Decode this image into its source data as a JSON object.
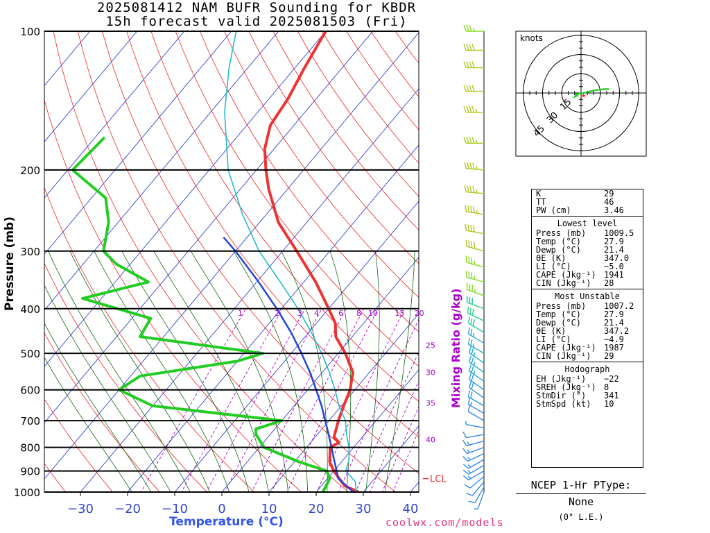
{
  "title": {
    "line1": "2025081412 NAM BUFR Sounding for KBDR",
    "line2": "15h forecast valid 2025081503 (Fri)"
  },
  "credit": "coolwx.com/models",
  "colors": {
    "temperature": "#ee3333",
    "dewpoint": "#22cc22",
    "parcel": "#2244dd",
    "virtual_temp": "#22bbcc",
    "isotherm": "#3344cc",
    "dry_adiabat": "#ee2222",
    "moist_adiabat": "#116611",
    "mixing_ratio": "#aa00cc"
  },
  "chart_data": [
    {
      "type": "line",
      "name": "skew-t",
      "xlabel": "Temperature (°C)",
      "ylabel": "Pressure (mb)",
      "pressure_range_mb": [
        1000,
        100
      ],
      "pressure_scale": "log",
      "temperature_ticks_c": [
        -30,
        -20,
        -10,
        0,
        10,
        20,
        30,
        40
      ],
      "pressure_ticks_mb": [
        100,
        200,
        300,
        400,
        500,
        600,
        700,
        800,
        900,
        1000
      ],
      "mixing_ratio_label": "Mixing Ratio (g/kg)",
      "mixing_ratio_ticks": [
        "1",
        "2",
        "3",
        "4",
        "6",
        "8",
        "10",
        "15",
        "20"
      ],
      "mixing_ratio_side_ticks": [
        "25",
        "30",
        "35",
        "40"
      ],
      "lcl_label": "LCL",
      "lcl_pressure_mb": 935,
      "series": [
        {
          "key": "temperature",
          "points": [
            [
              1000,
              29
            ],
            [
              970,
              25
            ],
            [
              935,
              22.5
            ],
            [
              900,
              20
            ],
            [
              860,
              17.5
            ],
            [
              800,
              15
            ],
            [
              780,
              16
            ],
            [
              760,
              14
            ],
            [
              700,
              12
            ],
            [
              650,
              10.5
            ],
            [
              600,
              9
            ],
            [
              550,
              6.5
            ],
            [
              500,
              1.5
            ],
            [
              460,
              -3.5
            ],
            [
              430,
              -6
            ],
            [
              400,
              -10
            ],
            [
              350,
              -17.5
            ],
            [
              300,
              -27
            ],
            [
              260,
              -36
            ],
            [
              220,
              -44
            ],
            [
              200,
              -48
            ],
            [
              180,
              -52
            ],
            [
              160,
              -55
            ],
            [
              140,
              -56
            ],
            [
              120,
              -58
            ],
            [
              100,
              -60
            ]
          ]
        },
        {
          "key": "dewpoint",
          "points": [
            [
              1000,
              21.4
            ],
            [
              970,
              21
            ],
            [
              935,
              20.5
            ],
            [
              900,
              18.5
            ],
            [
              860,
              11
            ],
            [
              800,
              1
            ],
            [
              750,
              -3
            ],
            [
              730,
              -4
            ],
            [
              700,
              0
            ],
            [
              650,
              -30
            ],
            [
              600,
              -40
            ],
            [
              560,
              -38
            ],
            [
              520,
              -20
            ],
            [
              500,
              -16
            ],
            [
              460,
              -45
            ],
            [
              420,
              -46
            ],
            [
              380,
              -64
            ],
            [
              350,
              -53
            ],
            [
              320,
              -63
            ],
            [
              300,
              -68
            ],
            [
              260,
              -72
            ],
            [
              230,
              -77
            ],
            [
              200,
              -89
            ],
            [
              170,
              -88
            ]
          ]
        },
        {
          "key": "parcel",
          "points": [
            [
              1000,
              27.9
            ],
            [
              935,
              22.3
            ],
            [
              900,
              20.6
            ],
            [
              850,
              18
            ],
            [
              800,
              15.3
            ],
            [
              750,
              12.4
            ],
            [
              700,
              9.2
            ],
            [
              650,
              5.8
            ],
            [
              600,
              1.8
            ],
            [
              550,
              -2.6
            ],
            [
              500,
              -7.8
            ],
            [
              450,
              -13.8
            ],
            [
              400,
              -21
            ],
            [
              350,
              -29.6
            ],
            [
              300,
              -40
            ],
            [
              280,
              -45
            ]
          ]
        },
        {
          "key": "virtual_temp",
          "points": [
            [
              1000,
              28.5
            ],
            [
              950,
              26.5
            ],
            [
              900,
              22.5
            ],
            [
              850,
              21.2
            ],
            [
              800,
              19
            ],
            [
              750,
              16.2
            ],
            [
              700,
              13.5
            ],
            [
              650,
              9.5
            ],
            [
              600,
              5.8
            ],
            [
              550,
              1.5
            ],
            [
              500,
              -3.5
            ],
            [
              450,
              -9.5
            ],
            [
              400,
              -16.5
            ],
            [
              350,
              -25
            ],
            [
              300,
              -35
            ],
            [
              250,
              -45
            ],
            [
              200,
              -56
            ],
            [
              150,
              -67
            ],
            [
              120,
              -74
            ],
            [
              100,
              -79
            ]
          ]
        }
      ]
    },
    {
      "type": "scatter",
      "name": "hodograph",
      "unit_label": "knots",
      "ring_labels": [
        "15",
        "30",
        "45"
      ],
      "rings_kt": [
        15,
        30,
        45
      ],
      "trace_uv_kt": [
        [
          -2,
          -2
        ],
        [
          -3,
          -2
        ],
        [
          -5,
          -3
        ],
        [
          -4,
          -1
        ],
        [
          2,
          0
        ],
        [
          10,
          2
        ],
        [
          18,
          3
        ],
        [
          22,
          3
        ]
      ],
      "storm_motion_uv_kt": [
        2,
        -1
      ]
    }
  ],
  "wind_barbs": [
    {
      "p": 1000,
      "dir": 200,
      "spd": 5
    },
    {
      "p": 975,
      "dir": 210,
      "spd": 10
    },
    {
      "p": 950,
      "dir": 220,
      "spd": 10
    },
    {
      "p": 925,
      "dir": 230,
      "spd": 10
    },
    {
      "p": 900,
      "dir": 240,
      "spd": 15
    },
    {
      "p": 875,
      "dir": 240,
      "spd": 15
    },
    {
      "p": 850,
      "dir": 240,
      "spd": 15
    },
    {
      "p": 825,
      "dir": 245,
      "spd": 15
    },
    {
      "p": 800,
      "dir": 250,
      "spd": 15
    },
    {
      "p": 775,
      "dir": 255,
      "spd": 15
    },
    {
      "p": 750,
      "dir": 260,
      "spd": 10
    },
    {
      "p": 725,
      "dir": 280,
      "spd": 5
    },
    {
      "p": 700,
      "dir": 300,
      "spd": 10
    },
    {
      "p": 675,
      "dir": 300,
      "spd": 15
    },
    {
      "p": 650,
      "dir": 300,
      "spd": 20
    },
    {
      "p": 625,
      "dir": 305,
      "spd": 20
    },
    {
      "p": 600,
      "dir": 305,
      "spd": 20
    },
    {
      "p": 575,
      "dir": 305,
      "spd": 25
    },
    {
      "p": 550,
      "dir": 305,
      "spd": 25
    },
    {
      "p": 525,
      "dir": 305,
      "spd": 25
    },
    {
      "p": 500,
      "dir": 300,
      "spd": 25
    },
    {
      "p": 475,
      "dir": 300,
      "spd": 25
    },
    {
      "p": 450,
      "dir": 300,
      "spd": 30
    },
    {
      "p": 425,
      "dir": 295,
      "spd": 30
    },
    {
      "p": 400,
      "dir": 290,
      "spd": 30
    },
    {
      "p": 375,
      "dir": 290,
      "spd": 35
    },
    {
      "p": 350,
      "dir": 285,
      "spd": 35
    },
    {
      "p": 325,
      "dir": 285,
      "spd": 35
    },
    {
      "p": 300,
      "dir": 285,
      "spd": 40
    },
    {
      "p": 275,
      "dir": 280,
      "spd": 40
    },
    {
      "p": 250,
      "dir": 280,
      "spd": 45
    },
    {
      "p": 225,
      "dir": 275,
      "spd": 45
    },
    {
      "p": 200,
      "dir": 275,
      "spd": 45
    },
    {
      "p": 175,
      "dir": 270,
      "spd": 45
    },
    {
      "p": 150,
      "dir": 270,
      "spd": 45
    },
    {
      "p": 135,
      "dir": 270,
      "spd": 40
    },
    {
      "p": 120,
      "dir": 270,
      "spd": 40
    },
    {
      "p": 110,
      "dir": 270,
      "spd": 40
    },
    {
      "p": 100,
      "dir": 270,
      "spd": 35
    }
  ],
  "indices": {
    "top": [
      {
        "k": "K",
        "v": "29"
      },
      {
        "k": "TT",
        "v": "46"
      },
      {
        "k": "PW (cm)",
        "v": "3.46"
      }
    ],
    "lowest_title": "Lowest level",
    "lowest": [
      {
        "k": "Press (mb)",
        "v": "1009.5"
      },
      {
        "k": "Temp (°C)",
        "v": "27.9"
      },
      {
        "k": "Dewp (°C)",
        "v": "21.4"
      },
      {
        "k": "θE (K)",
        "v": "347.0"
      },
      {
        "k": "LI (°C)",
        "v": "−5.0"
      },
      {
        "k": "CAPE (Jkg⁻¹)",
        "v": "1941"
      },
      {
        "k": "CIN (Jkg⁻¹)",
        "v": "28"
      }
    ],
    "unstable_title": "Most Unstable",
    "unstable": [
      {
        "k": "Press (mb)",
        "v": "1007.2"
      },
      {
        "k": "Temp (°C)",
        "v": "27.9"
      },
      {
        "k": "Dewp (°C)",
        "v": "21.4"
      },
      {
        "k": "θE (K)",
        "v": "347.2"
      },
      {
        "k": "LI (°C)",
        "v": "−4.9"
      },
      {
        "k": "CAPE (Jkg⁻¹)",
        "v": "1987"
      },
      {
        "k": "CIN (Jkg⁻¹)",
        "v": "29"
      }
    ],
    "hodo_title": "Hodograph",
    "hodo": [
      {
        "k": "EH (Jkg⁻¹)",
        "v": "−22"
      },
      {
        "k": "SREH (Jkg⁻¹)",
        "v": "8"
      },
      {
        "k": "StmDir (°)",
        "v": "341"
      },
      {
        "k": "StmSpd (kt)",
        "v": "10"
      }
    ]
  },
  "ptype": {
    "heading": "NCEP 1-Hr PType:",
    "value": "None",
    "sub": "(0\" L.E.)"
  }
}
